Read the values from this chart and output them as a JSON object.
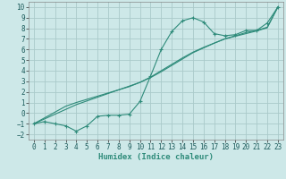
{
  "x": [
    0,
    1,
    2,
    3,
    4,
    5,
    6,
    7,
    8,
    9,
    10,
    11,
    12,
    13,
    14,
    15,
    16,
    17,
    18,
    19,
    20,
    21,
    22,
    23
  ],
  "y_jagged": [
    -1.0,
    -0.8,
    -1.0,
    -1.2,
    -1.7,
    -1.2,
    -0.3,
    -0.2,
    -0.2,
    -0.1,
    1.1,
    3.5,
    6.0,
    7.7,
    8.7,
    9.0,
    8.6,
    7.5,
    7.3,
    7.4,
    7.8,
    7.8,
    8.5,
    10.0
  ],
  "y_trend1": [
    -1.0,
    -0.55,
    -0.1,
    0.35,
    0.8,
    1.15,
    1.5,
    1.85,
    2.2,
    2.55,
    2.9,
    3.35,
    3.9,
    4.5,
    5.1,
    5.7,
    6.15,
    6.6,
    7.0,
    7.3,
    7.6,
    7.8,
    8.1,
    10.0
  ],
  "y_trend2": [
    -1.0,
    -0.45,
    0.1,
    0.65,
    1.0,
    1.3,
    1.6,
    1.9,
    2.2,
    2.5,
    2.9,
    3.4,
    4.0,
    4.6,
    5.2,
    5.75,
    6.2,
    6.6,
    7.0,
    7.25,
    7.5,
    7.75,
    8.05,
    10.0
  ],
  "line_color": "#2e8b7a",
  "bg_color": "#cde8e8",
  "grid_color": "#aacaca",
  "xlabel": "Humidex (Indice chaleur)",
  "xlim": [
    -0.5,
    23.5
  ],
  "ylim": [
    -2.5,
    10.5
  ],
  "xticks": [
    0,
    1,
    2,
    3,
    4,
    5,
    6,
    7,
    8,
    9,
    10,
    11,
    12,
    13,
    14,
    15,
    16,
    17,
    18,
    19,
    20,
    21,
    22,
    23
  ],
  "yticks": [
    -2,
    -1,
    0,
    1,
    2,
    3,
    4,
    5,
    6,
    7,
    8,
    9,
    10
  ],
  "tick_fontsize": 5.5,
  "label_fontsize": 6.5
}
